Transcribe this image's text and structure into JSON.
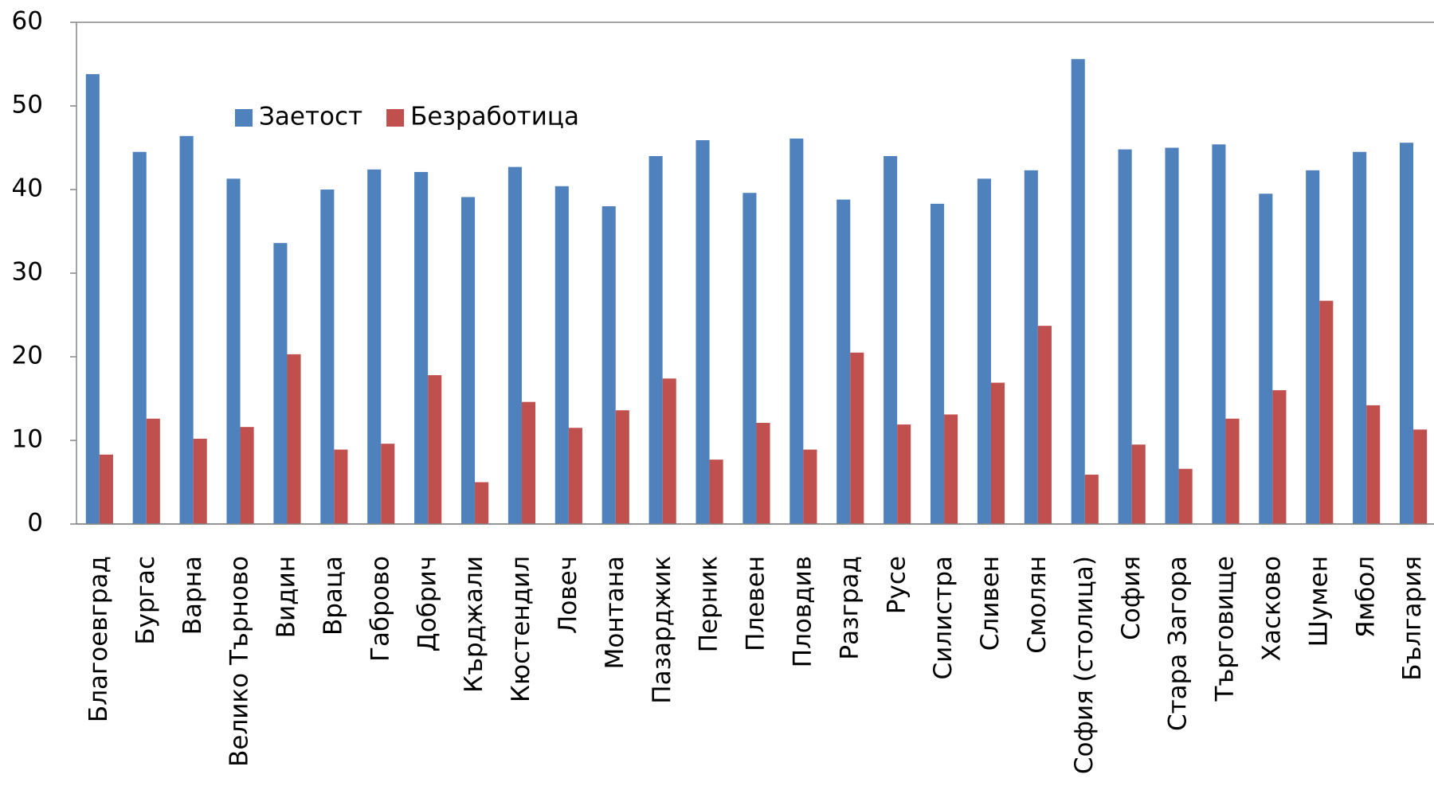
{
  "chart_data": {
    "type": "bar",
    "categories": [
      "Благоевград",
      "Бургас",
      "Варна",
      "Велико Търново",
      "Видин",
      "Враца",
      "Габрово",
      "Добрич",
      "Кърджали",
      "Кюстендил",
      "Ловеч",
      "Монтана",
      "Пазарджик",
      "Перник",
      "Плевен",
      "Пловдив",
      "Разград",
      "Русе",
      "Силистра",
      "Сливен",
      "Смолян",
      "София (столица)",
      "София",
      "Стара Загора",
      "Търговище",
      "Хасково",
      "Шумен",
      "Ямбол",
      "България"
    ],
    "series": [
      {
        "name": "Заетост",
        "color": "#4f81bd",
        "values": [
          53.8,
          44.5,
          46.4,
          41.3,
          33.6,
          40.0,
          42.4,
          42.1,
          39.1,
          42.7,
          40.4,
          38.0,
          44.0,
          45.9,
          39.6,
          46.1,
          38.8,
          44.0,
          38.3,
          41.3,
          42.3,
          55.6,
          44.8,
          45.0,
          45.4,
          39.5,
          42.3,
          44.5,
          45.6
        ]
      },
      {
        "name": "Безработица",
        "color": "#c0504d",
        "values": [
          8.3,
          12.6,
          10.2,
          11.6,
          20.3,
          8.9,
          9.6,
          17.8,
          5.0,
          14.6,
          11.5,
          13.6,
          17.4,
          7.7,
          12.1,
          8.9,
          20.5,
          11.9,
          13.1,
          16.9,
          23.7,
          5.9,
          9.5,
          6.6,
          12.6,
          16.0,
          26.7,
          14.2,
          11.3
        ]
      }
    ],
    "ylim": [
      0,
      60
    ],
    "yticks": [
      0,
      10,
      20,
      30,
      40,
      50,
      60
    ],
    "grid": false,
    "legend": "inside-top-left"
  }
}
